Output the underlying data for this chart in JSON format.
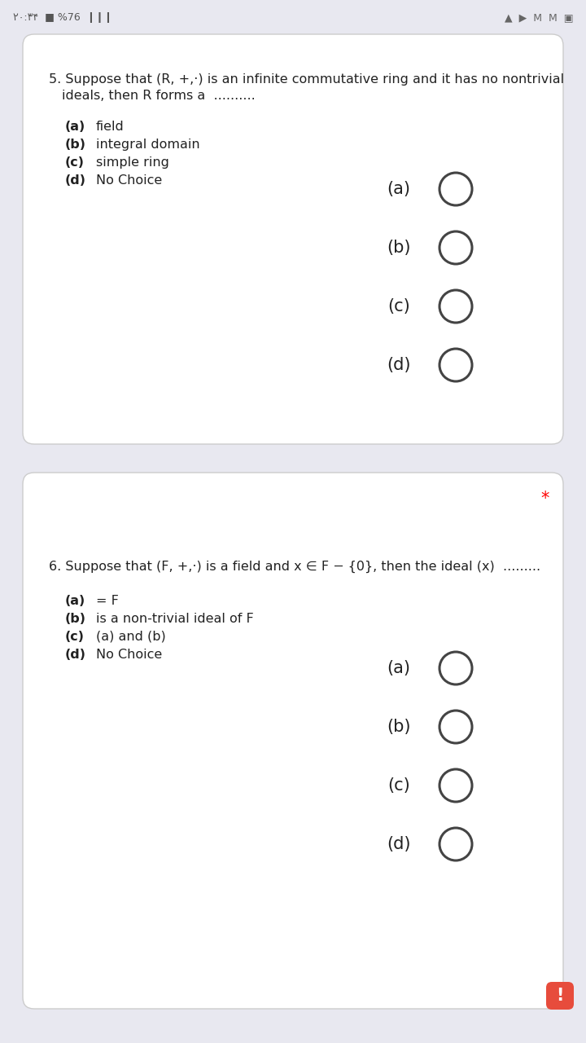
{
  "bg_color": "#e8e8f0",
  "card_color": "#ffffff",
  "text_color": "#222222",
  "circle_edge_color": "#444444",
  "q5": {
    "number": "5.",
    "question_line1": "Suppose that (R, +,·) is an infinite commutative ring and it has no nontrivial",
    "question_line2": "ideals, then R forms a  ..........",
    "options": [
      [
        "(a)",
        "field"
      ],
      [
        "(b)",
        "integral domain"
      ],
      [
        "(c)",
        "simple ring"
      ],
      [
        "(d)",
        "No Choice"
      ]
    ],
    "answer_labels": [
      "(a)",
      "(b)",
      "(c)",
      "(d)"
    ]
  },
  "q6": {
    "number": "6.",
    "question_line1": "Suppose that (F, +,·) is a field and x ∈ F − {0}, then the ideal (x)  .........",
    "options": [
      [
        "(a)",
        "= F"
      ],
      [
        "(b)",
        "is a non-trivial ideal of F"
      ],
      [
        "(c)",
        "(a) and (b)"
      ],
      [
        "(d)",
        "No Choice"
      ]
    ],
    "answer_labels": [
      "(a)",
      "(b)",
      "(c)",
      "(d)"
    ],
    "asterisk": "*"
  },
  "font_size_q": 11.5,
  "font_size_opt": 11.5,
  "font_size_ans": 15,
  "font_size_circle_ans": 15
}
